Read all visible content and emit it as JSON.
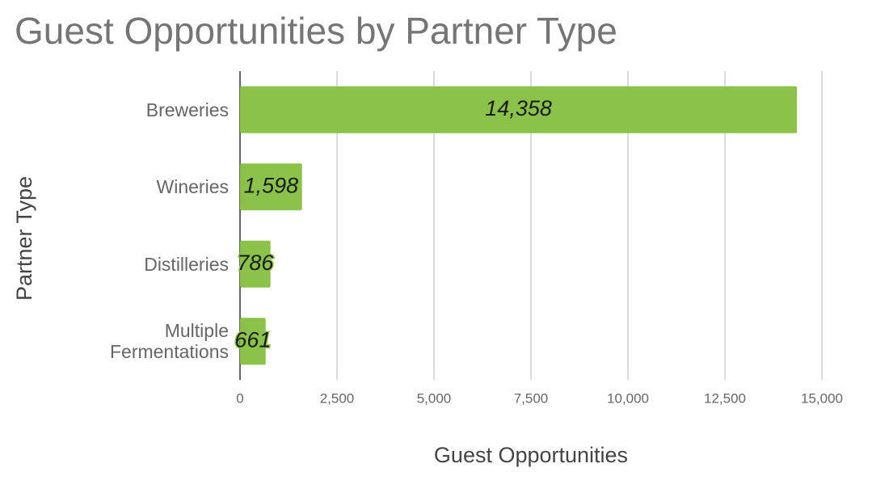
{
  "chart_data": {
    "type": "barh",
    "title": "Guest Opportunities by Partner Type",
    "x_label": "Guest Opportunities",
    "y_label": "Partner Type",
    "categories": [
      "Breweries",
      "Wineries",
      "Distilleries",
      "Multiple Fermentations"
    ],
    "values": [
      14358,
      1598,
      786,
      661
    ],
    "value_labels": [
      "14,358",
      "1,598",
      "786",
      "661"
    ],
    "color": "#8bc34a",
    "xlim": [
      0,
      15000
    ],
    "xticks": [
      0,
      {
        "value": 2500,
        "label": "2,500"
      },
      {
        "value": 5000,
        "label": "5,000"
      },
      {
        "value": 7500,
        "label": "7,500"
      },
      {
        "value": 10000,
        "label": "10,000"
      },
      {
        "value": 12500,
        "label": "12,500"
      },
      {
        "value": 15000,
        "label": "15,000"
      }
    ],
    "grid": true
  }
}
